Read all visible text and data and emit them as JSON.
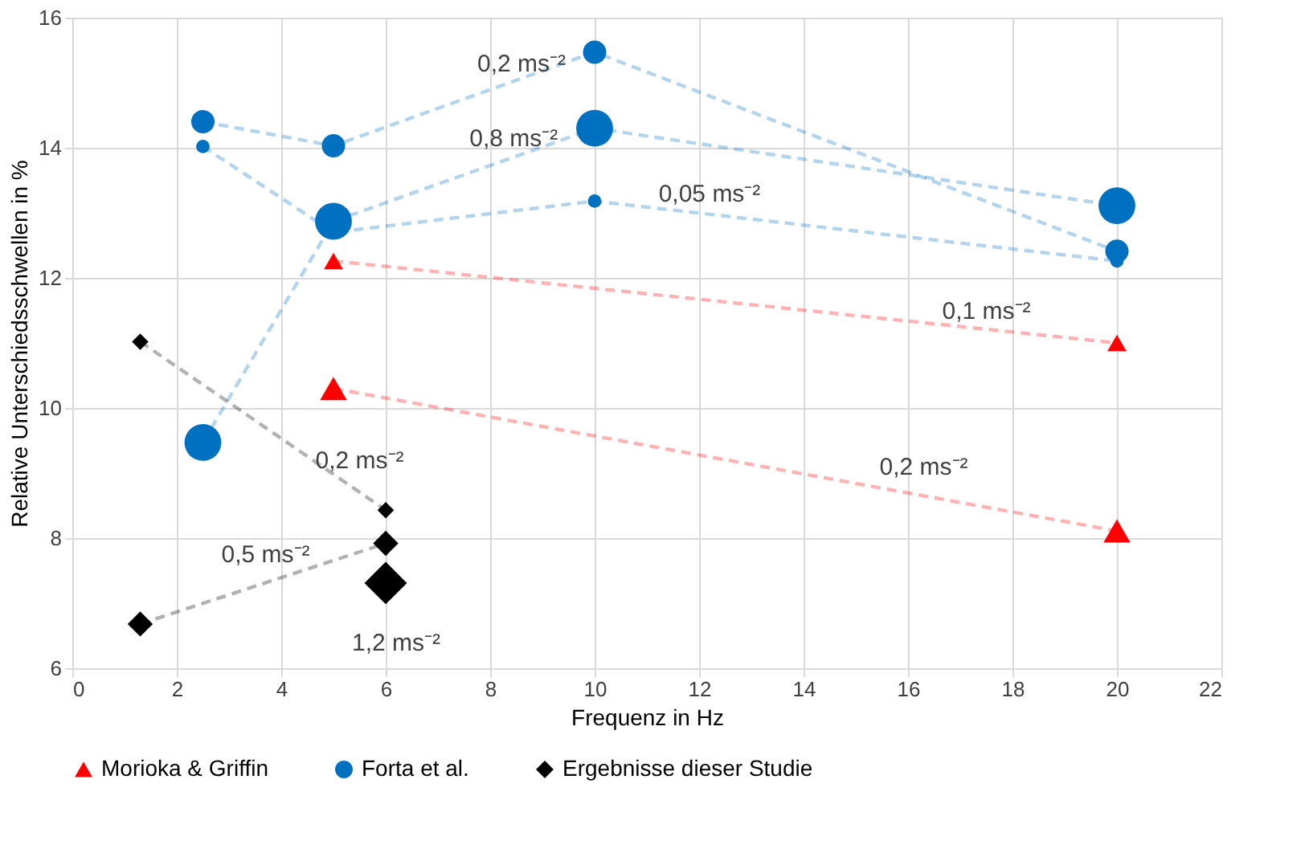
{
  "chart_data": {
    "type": "line",
    "xlabel": "Frequenz in Hz",
    "ylabel": "Relative Unterschiedsschwellen in %",
    "xlim": [
      0,
      22
    ],
    "xticks": [
      0,
      2,
      4,
      6,
      8,
      10,
      12,
      14,
      16,
      18,
      20,
      22
    ],
    "ylim": [
      6,
      16
    ],
    "yticks": [
      6,
      8,
      10,
      12,
      14,
      16
    ],
    "grid": true,
    "legend": "bottom",
    "line_style": "dashed",
    "series": [
      {
        "name": "Morioka & Griffin",
        "color": "#ff0000",
        "marker": "triangle",
        "x": [
          5,
          20
        ],
        "values": [
          12.26,
          11.0
        ]
      },
      {
        "color": "#ff0000",
        "marker": "triangle",
        "x": [
          5,
          20
        ],
        "values": [
          10.3,
          8.11
        ]
      },
      {
        "name": "Forta et al.",
        "color": "#0070c0",
        "marker": "circle",
        "x": [
          2.5,
          5,
          10,
          20
        ],
        "values": [
          14.4,
          14.03,
          15.47,
          12.41
        ]
      },
      {
        "color": "#0070c0",
        "marker": "circle",
        "x": [
          2.5,
          5,
          10,
          20
        ],
        "values": [
          14.02,
          12.7,
          13.18,
          12.26
        ]
      },
      {
        "color": "#0070c0",
        "marker": "circle",
        "x": [
          2.5,
          5,
          10,
          20
        ],
        "values": [
          9.47,
          12.87,
          14.3,
          13.11
        ]
      },
      {
        "name": "Ergebnisse dieser Studie",
        "color": "#000000",
        "marker": "diamond",
        "x": [
          1.3,
          6
        ],
        "values": [
          11.02,
          8.43
        ]
      },
      {
        "color": "#000000",
        "marker": "diamond",
        "x": [
          1.3,
          6
        ],
        "values": [
          6.68,
          7.92
        ]
      },
      {
        "color": "#000000",
        "marker": "diamond",
        "x": [
          6
        ],
        "values": [
          7.31
        ]
      }
    ],
    "annotations": [
      "0,2 ms⁻²",
      "0,8 ms⁻²",
      "0,05 ms⁻²",
      "0,1 ms⁻²",
      "0,2 ms⁻²",
      "0,2 ms⁻²",
      "0,5 ms⁻²",
      "1,2 ms⁻²"
    ]
  }
}
